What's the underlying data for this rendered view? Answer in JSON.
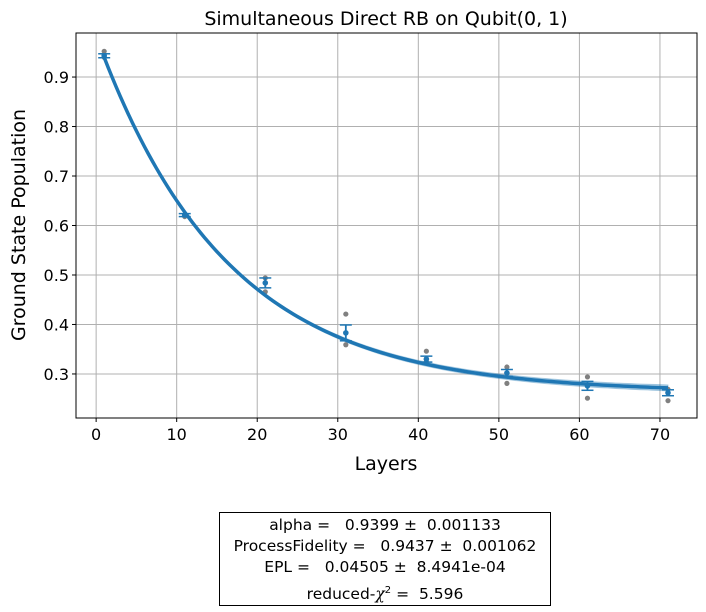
{
  "chart_data": {
    "type": "scatter",
    "title": "Simultaneous Direct RB on Qubit(0, 1)",
    "xlabel": "Layers",
    "ylabel": "Ground State Population",
    "xlim": [
      -2.5,
      74.6
    ],
    "ylim": [
      0.211,
      0.989
    ],
    "xticks": [
      0,
      10,
      20,
      30,
      40,
      50,
      60,
      70
    ],
    "yticks": [
      0.3,
      0.4,
      0.5,
      0.6,
      0.7,
      0.8,
      0.9
    ],
    "grid": true,
    "colors": {
      "fit": "#1f77b4",
      "band": "#1f77b4",
      "samples": "#808080",
      "grid": "#b0b0b0"
    },
    "fit": {
      "model": "A*alpha^x + B",
      "A": 0.72,
      "alpha": 0.9399,
      "B": 0.263,
      "band_halfwidth": 0.006
    },
    "points": [
      {
        "x": 1,
        "mean": 0.943,
        "err": 0.004,
        "samples": [
          0.952,
          0.94
        ]
      },
      {
        "x": 11,
        "mean": 0.621,
        "err": 0.003,
        "samples": [
          0.618,
          0.622
        ]
      },
      {
        "x": 21,
        "mean": 0.484,
        "err": 0.01,
        "samples": [
          0.494,
          0.466
        ]
      },
      {
        "x": 31,
        "mean": 0.383,
        "err": 0.016,
        "samples": [
          0.421,
          0.359
        ]
      },
      {
        "x": 41,
        "mean": 0.33,
        "err": 0.006,
        "samples": [
          0.346,
          0.325
        ]
      },
      {
        "x": 51,
        "mean": 0.302,
        "err": 0.007,
        "samples": [
          0.314,
          0.281
        ]
      },
      {
        "x": 61,
        "mean": 0.276,
        "err": 0.009,
        "samples": [
          0.294,
          0.251
        ]
      },
      {
        "x": 71,
        "mean": 0.262,
        "err": 0.006,
        "samples": [
          0.269,
          0.246
        ]
      }
    ]
  },
  "stats": {
    "alpha": "alpha =   0.9399 ±  0.001133",
    "process_fidelity": "ProcessFidelity =   0.9437 ±  0.001062",
    "epl": "EPL =   0.04505 ±  8.4941e-04",
    "chi2_prefix": "reduced-",
    "chi2_symbol": "χ",
    "chi2_exp": "2",
    "chi2_value": " =  5.596"
  }
}
